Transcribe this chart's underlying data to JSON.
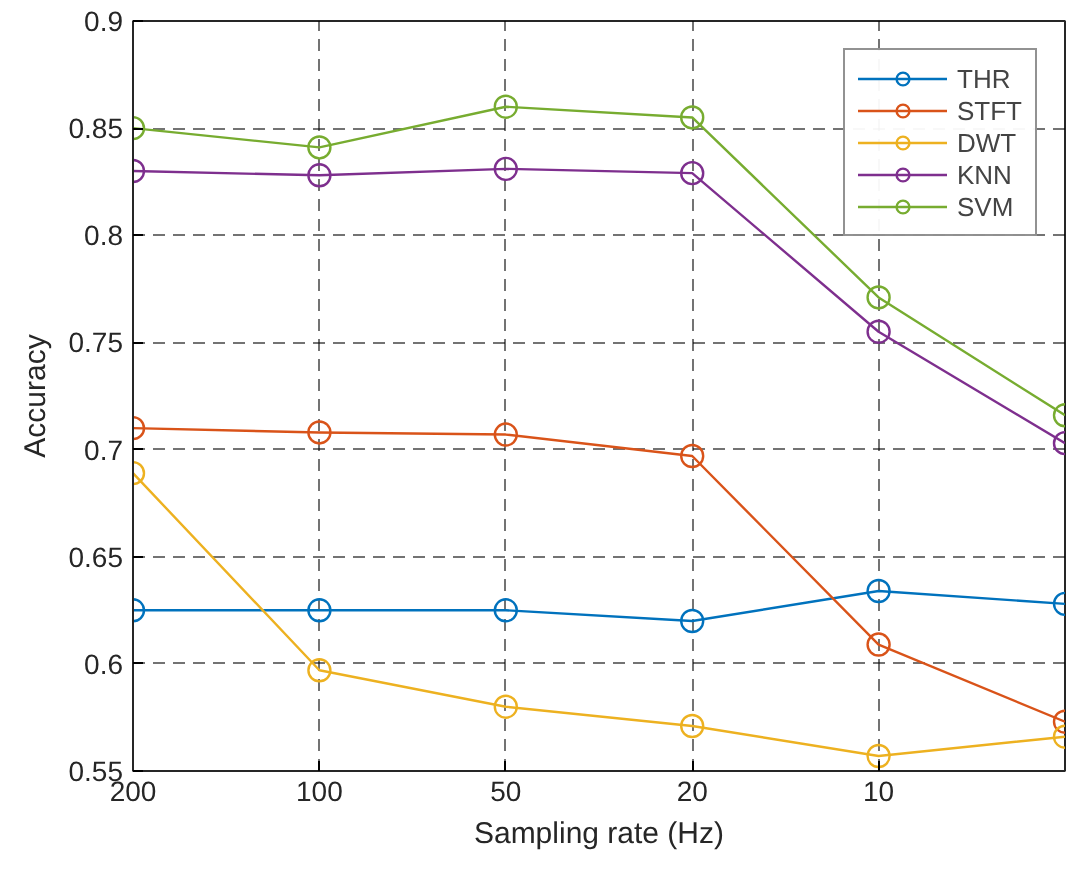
{
  "chart_data": {
    "type": "line",
    "xlabel": "Sampling rate (Hz)",
    "ylabel": "Accuracy",
    "categories": [
      "200",
      "100",
      "50",
      "20",
      "10",
      null
    ],
    "ylim": [
      0.55,
      0.9
    ],
    "yticks": [
      0.55,
      0.6,
      0.65,
      0.7,
      0.75,
      0.8,
      0.85,
      0.9
    ],
    "series": [
      {
        "name": "THR",
        "color": "#0072bd",
        "values": [
          0.625,
          0.625,
          0.625,
          0.62,
          0.634,
          0.628
        ]
      },
      {
        "name": "STFT",
        "color": "#d95319",
        "values": [
          0.71,
          0.708,
          0.707,
          0.697,
          0.609,
          0.573
        ]
      },
      {
        "name": "DWT",
        "color": "#edb120",
        "values": [
          0.689,
          0.597,
          0.58,
          0.571,
          0.557,
          0.566
        ]
      },
      {
        "name": "KNN",
        "color": "#7e2f8e",
        "values": [
          0.83,
          0.828,
          0.831,
          0.829,
          0.755,
          0.703
        ]
      },
      {
        "name": "SVM",
        "color": "#77ac30",
        "values": [
          0.85,
          0.841,
          0.86,
          0.855,
          0.771,
          0.716
        ]
      }
    ],
    "marker": "circle",
    "line_style": "solid",
    "grid": true,
    "legend": "top right"
  }
}
